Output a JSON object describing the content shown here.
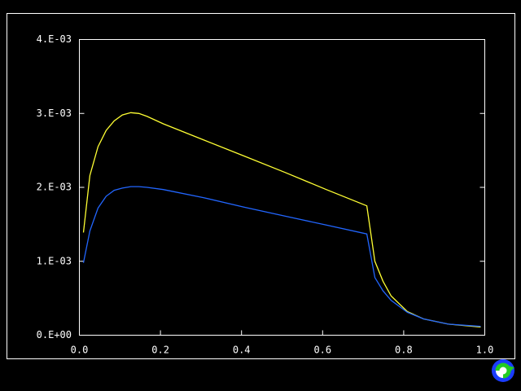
{
  "chart_data": {
    "type": "line",
    "x": [
      0.01,
      0.026,
      0.046,
      0.066,
      0.086,
      0.106,
      0.127,
      0.147,
      0.167,
      0.207,
      0.307,
      0.408,
      0.508,
      0.609,
      0.709,
      0.729,
      0.749,
      0.769,
      0.809,
      0.849,
      0.91,
      0.99
    ],
    "series": [
      {
        "color": "#ffff33",
        "values": [
          0.00139,
          0.00216,
          0.00255,
          0.00277,
          0.0029,
          0.00298,
          0.00301,
          0.003,
          0.00296,
          0.00286,
          0.00264,
          0.00242,
          0.0022,
          0.00197,
          0.00175,
          0.001,
          0.00073,
          0.00053,
          0.00032,
          0.00022,
          0.00015,
          0.00011
        ]
      },
      {
        "color": "#2266ff",
        "values": [
          0.00098,
          0.00141,
          0.00172,
          0.00188,
          0.00196,
          0.00199,
          0.00201,
          0.00201,
          0.002,
          0.00197,
          0.00186,
          0.00173,
          0.00161,
          0.00149,
          0.00137,
          0.00078,
          0.0006,
          0.00047,
          0.00031,
          0.00022,
          0.00015,
          0.00012
        ]
      }
    ],
    "xlim": [
      0,
      1
    ],
    "xticks": [
      {
        "value": 0,
        "label": "0.0"
      },
      {
        "value": 0.2,
        "label": "0.2"
      },
      {
        "value": 0.4,
        "label": "0.4"
      },
      {
        "value": 0.6,
        "label": "0.6"
      },
      {
        "value": 0.8,
        "label": "0.8"
      },
      {
        "value": 1,
        "label": "1.0"
      }
    ],
    "ylim": [
      0,
      0.004
    ],
    "yticks": [
      {
        "value": 0,
        "label": "0.E+00"
      },
      {
        "value": 0.001,
        "label": "1.E-03"
      },
      {
        "value": 0.002,
        "label": "2.E-03"
      },
      {
        "value": 0.003,
        "label": "3.E-03"
      },
      {
        "value": 0.004,
        "label": "4.E-03"
      }
    ],
    "grid": false
  }
}
